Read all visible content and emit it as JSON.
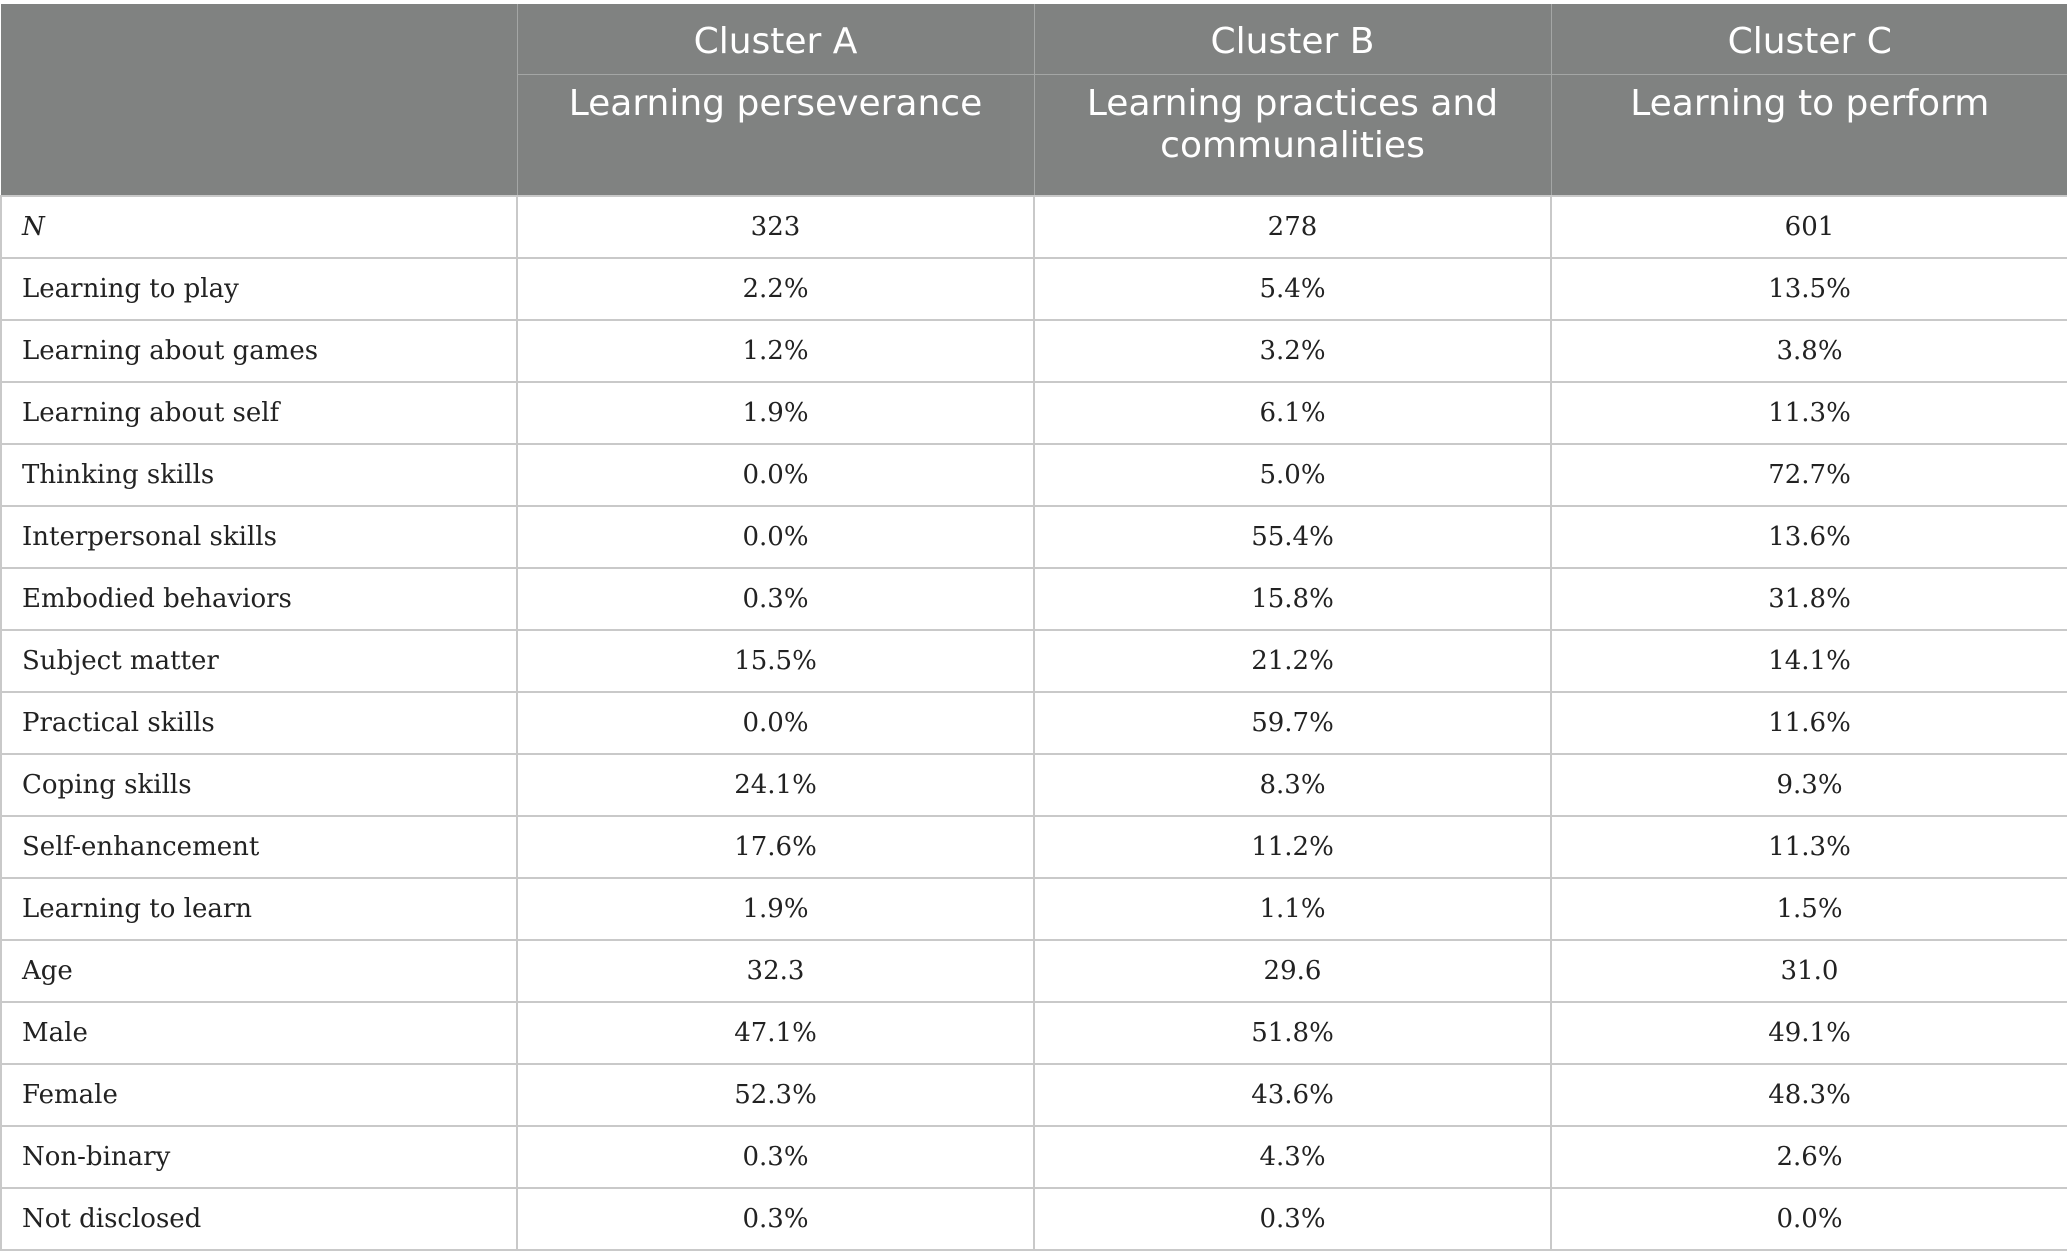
{
  "header": {
    "clusters": [
      {
        "label": "Cluster A",
        "name": "Learning perseverance"
      },
      {
        "label": "Cluster B",
        "name": "Learning practices and communalities"
      },
      {
        "label": "Cluster C",
        "name": "Learning to perform"
      }
    ]
  },
  "rows": [
    {
      "label": "N",
      "values": [
        "323",
        "278",
        "601"
      ]
    },
    {
      "label": "Learning to play",
      "values": [
        "2.2%",
        "5.4%",
        "13.5%"
      ]
    },
    {
      "label": "Learning about games",
      "values": [
        "1.2%",
        "3.2%",
        "3.8%"
      ]
    },
    {
      "label": "Learning about self",
      "values": [
        "1.9%",
        "6.1%",
        "11.3%"
      ]
    },
    {
      "label": "Thinking skills",
      "values": [
        "0.0%",
        "5.0%",
        "72.7%"
      ]
    },
    {
      "label": "Interpersonal skills",
      "values": [
        "0.0%",
        "55.4%",
        "13.6%"
      ]
    },
    {
      "label": "Embodied behaviors",
      "values": [
        "0.3%",
        "15.8%",
        "31.8%"
      ]
    },
    {
      "label": "Subject matter",
      "values": [
        "15.5%",
        "21.2%",
        "14.1%"
      ]
    },
    {
      "label": "Practical skills",
      "values": [
        "0.0%",
        "59.7%",
        "11.6%"
      ]
    },
    {
      "label": "Coping skills",
      "values": [
        "24.1%",
        "8.3%",
        "9.3%"
      ]
    },
    {
      "label": "Self-enhancement",
      "values": [
        "17.6%",
        "11.2%",
        "11.3%"
      ]
    },
    {
      "label": "Learning to learn",
      "values": [
        "1.9%",
        "1.1%",
        "1.5%"
      ]
    },
    {
      "label": "Age",
      "values": [
        "32.3",
        "29.6",
        "31.0"
      ]
    },
    {
      "label": "Male",
      "values": [
        "47.1%",
        "51.8%",
        "49.1%"
      ]
    },
    {
      "label": "Female",
      "values": [
        "52.3%",
        "43.6%",
        "48.3%"
      ]
    },
    {
      "label": "Non-binary",
      "values": [
        "0.3%",
        "4.3%",
        "2.6%"
      ]
    },
    {
      "label": "Not disclosed",
      "values": [
        "0.3%",
        "0.3%",
        "0.0%"
      ]
    }
  ],
  "colors": {
    "header_bg": "#808281",
    "header_text": "#ffffff",
    "grid": "#c9c9c9"
  }
}
